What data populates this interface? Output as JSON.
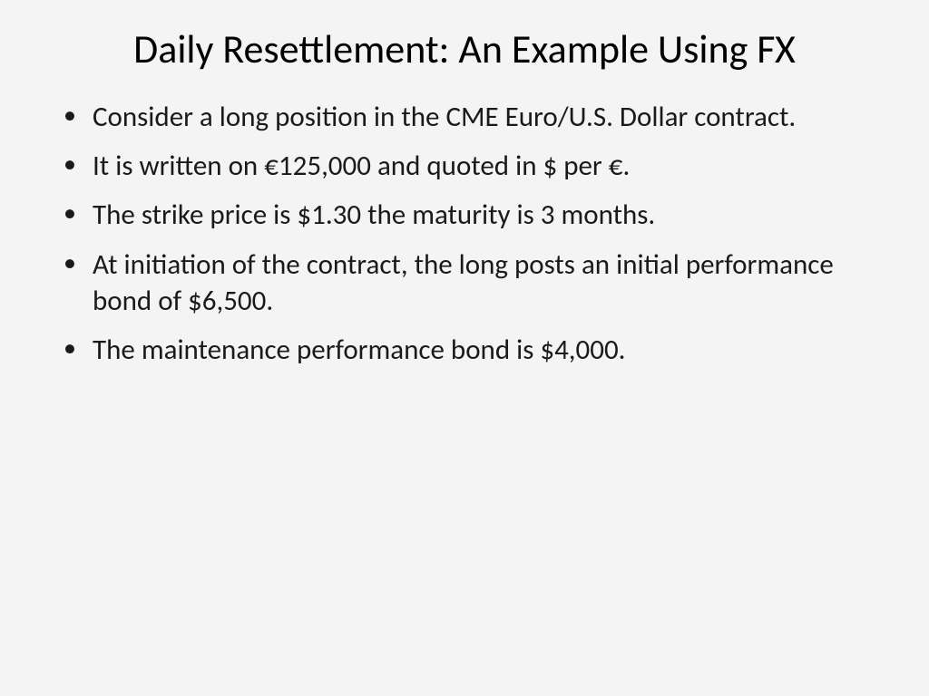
{
  "slide": {
    "background_color": "#f4f4f4",
    "text_color": "#1a1a1a",
    "title": "Daily Resettlement: An Example Using FX",
    "title_fontsize": 44,
    "body_fontsize": 31,
    "font_family": "Calibri",
    "bullets": [
      "Consider a long position in the CME Euro/U.S. Dollar contract.",
      "It is written on €125,000 and quoted in $ per €.",
      "The strike price is $1.30 the maturity is 3 months.",
      "At initiation of the contract, the long posts an initial performance bond of $6,500.",
      "The maintenance performance bond is $4,000."
    ]
  }
}
